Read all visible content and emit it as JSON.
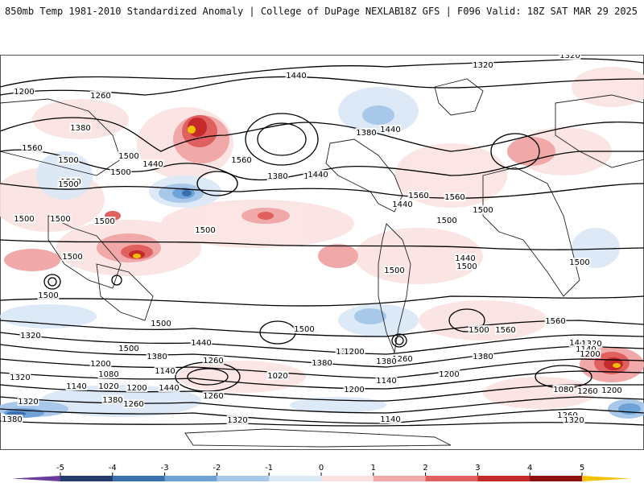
{
  "header": {
    "left_title": "850mb Temp 1981-2010 Standardized Anomaly | College of DuPage NEXLAB",
    "right_title": "18Z GFS | F096 Valid: 18Z SAT MAR 29 2025"
  },
  "colorbar": {
    "ticks": [
      "-5",
      "-4",
      "-3",
      "-2",
      "-1",
      "0",
      "1",
      "2",
      "3",
      "4",
      "5"
    ],
    "colors": [
      "#6a3d9a",
      "#253b6e",
      "#3a6fb0",
      "#6fa3d8",
      "#a8c8ea",
      "#dbe8f6",
      "#fbe2e2",
      "#f0a8a8",
      "#e06060",
      "#c42a2a",
      "#8b0f0f",
      "#f2c200"
    ]
  },
  "contour_labels": [
    "1320",
    "1200",
    "1260",
    "1440",
    "1380",
    "1320",
    "1560",
    "1500",
    "1440",
    "1380",
    "1560",
    "1500",
    "1440",
    "1500",
    "1380",
    "1500",
    "1440",
    "1500",
    "1560",
    "1440",
    "1380",
    "1500",
    "1560",
    "1500",
    "1500",
    "1500",
    "1500",
    "1500",
    "1500",
    "1500",
    "1500",
    "1500",
    "1500",
    "1500",
    "1560",
    "1440",
    "1320",
    "1500",
    "1380",
    "1260",
    "1200",
    "1080",
    "1020",
    "1140",
    "1200",
    "1260",
    "1320",
    "1380",
    "1440",
    "1380",
    "1320",
    "1200",
    "1140",
    "1140",
    "1200",
    "1260",
    "1200",
    "1200",
    "1260",
    "1320",
    "1500",
    "1560",
    "1440",
    "1320",
    "1380",
    "1260",
    "1200",
    "1140",
    "1020",
    "1080",
    "1260",
    "1320",
    "1380",
    "1140",
    "1200",
    "1440",
    "1320",
    "1500",
    "1380"
  ]
}
